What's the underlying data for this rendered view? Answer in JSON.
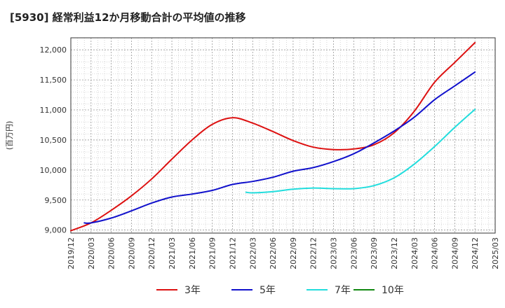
{
  "title": "[5930]  経常利益12か月移動合計の平均値の推移",
  "chart_data": {
    "type": "line",
    "ylabel": "(百万円)",
    "ylim": [
      8950,
      12200
    ],
    "yticks": [
      9000,
      9500,
      10000,
      10500,
      11000,
      11500,
      12000
    ],
    "ytick_labels": [
      "9,000",
      "9,500",
      "10,000",
      "10,500",
      "11,000",
      "11,500",
      "12,000"
    ],
    "xticks": [
      "2019/12",
      "2020/03",
      "2020/06",
      "2020/09",
      "2020/12",
      "2021/03",
      "2021/06",
      "2021/09",
      "2021/12",
      "2022/03",
      "2022/06",
      "2022/09",
      "2022/12",
      "2023/03",
      "2023/06",
      "2023/09",
      "2023/12",
      "2024/03",
      "2024/06",
      "2024/09",
      "2024/12",
      "2025/03"
    ],
    "grid": true,
    "legend_position": "bottom",
    "series": [
      {
        "name": "3年",
        "color": "#dd1111",
        "points": [
          [
            "2019/12",
            8990
          ],
          [
            "2020/03",
            9120
          ],
          [
            "2020/06",
            9330
          ],
          [
            "2020/09",
            9570
          ],
          [
            "2020/12",
            9850
          ],
          [
            "2021/03",
            10180
          ],
          [
            "2021/06",
            10500
          ],
          [
            "2021/09",
            10760
          ],
          [
            "2021/12",
            10870
          ],
          [
            "2022/03",
            10780
          ],
          [
            "2022/06",
            10640
          ],
          [
            "2022/09",
            10490
          ],
          [
            "2022/12",
            10380
          ],
          [
            "2023/03",
            10340
          ],
          [
            "2023/06",
            10350
          ],
          [
            "2023/09",
            10420
          ],
          [
            "2023/12",
            10620
          ],
          [
            "2024/03",
            10980
          ],
          [
            "2024/06",
            11460
          ],
          [
            "2024/09",
            11790
          ],
          [
            "2024/12",
            12120
          ]
        ]
      },
      {
        "name": "5年",
        "color": "#1111cc",
        "points": [
          [
            "2020/02",
            9120
          ],
          [
            "2020/03",
            9120
          ],
          [
            "2020/06",
            9200
          ],
          [
            "2020/09",
            9320
          ],
          [
            "2020/12",
            9450
          ],
          [
            "2021/03",
            9550
          ],
          [
            "2021/06",
            9600
          ],
          [
            "2021/09",
            9660
          ],
          [
            "2021/12",
            9760
          ],
          [
            "2022/03",
            9810
          ],
          [
            "2022/06",
            9880
          ],
          [
            "2022/09",
            9980
          ],
          [
            "2022/12",
            10040
          ],
          [
            "2023/03",
            10140
          ],
          [
            "2023/06",
            10270
          ],
          [
            "2023/09",
            10450
          ],
          [
            "2023/12",
            10650
          ],
          [
            "2024/03",
            10880
          ],
          [
            "2024/06",
            11170
          ],
          [
            "2024/09",
            11400
          ],
          [
            "2024/12",
            11630
          ]
        ]
      },
      {
        "name": "7年",
        "color": "#22dddd",
        "points": [
          [
            "2022/02",
            9630
          ],
          [
            "2022/03",
            9620
          ],
          [
            "2022/06",
            9640
          ],
          [
            "2022/09",
            9680
          ],
          [
            "2022/12",
            9700
          ],
          [
            "2023/03",
            9690
          ],
          [
            "2023/06",
            9690
          ],
          [
            "2023/09",
            9740
          ],
          [
            "2023/12",
            9870
          ],
          [
            "2024/03",
            10100
          ],
          [
            "2024/06",
            10390
          ],
          [
            "2024/09",
            10710
          ],
          [
            "2024/12",
            11010
          ]
        ]
      },
      {
        "name": "10年",
        "color": "#118811",
        "points": []
      }
    ]
  }
}
